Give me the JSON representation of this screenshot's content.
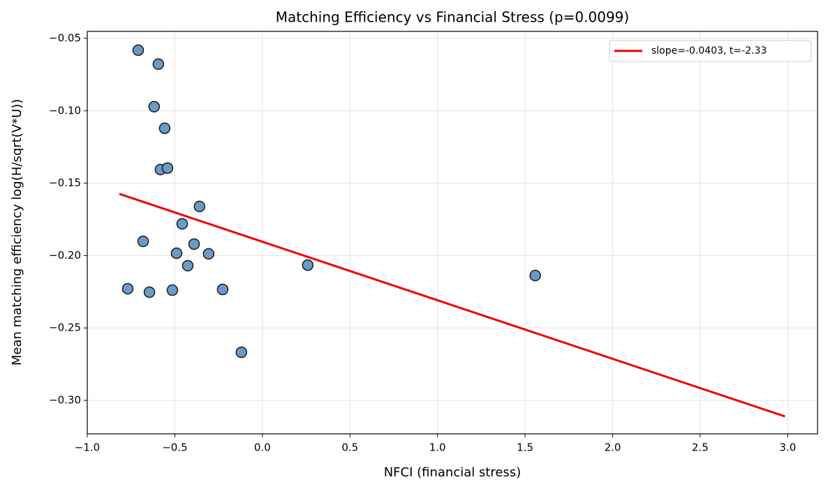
{
  "chart_data": {
    "type": "scatter",
    "title": "Matching Efficiency vs Financial Stress (p=0.0099)",
    "xlabel": "NFCI (financial stress)",
    "ylabel": "Mean matching efficiency log(H/sqrt(V*U))",
    "xlim": [
      -1.0,
      3.17
    ],
    "ylim": [
      -0.3231,
      -0.0452
    ],
    "xticks": [
      {
        "value": -1.0,
        "label": "−1.0"
      },
      {
        "value": -0.5,
        "label": "−0.5"
      },
      {
        "value": 0,
        "label": "0.0"
      },
      0.5,
      {
        "value": 1.0,
        "label": "1.0"
      },
      1.5,
      {
        "value": 2.0,
        "label": "2.0"
      },
      2.5,
      {
        "value": 3.0,
        "label": "3.0"
      }
    ],
    "yticks": [
      {
        "value": -0.05,
        "label": "−0.05"
      },
      {
        "value": -0.1,
        "label": "−0.10"
      },
      {
        "value": -0.15,
        "label": "−0.15"
      },
      {
        "value": -0.2,
        "label": "−0.20"
      },
      {
        "value": -0.25,
        "label": "−0.25"
      },
      {
        "value": -0.3,
        "label": "−0.30"
      }
    ],
    "grid": true,
    "legend": "upper right",
    "series": [
      {
        "type": "scatter",
        "color": "#6a9ac8",
        "x": [
          -0.709,
          -0.594,
          -0.618,
          -0.558,
          -0.582,
          -0.542,
          -0.359,
          -0.458,
          -0.681,
          -0.39,
          -0.49,
          -0.307,
          -0.426,
          0.259,
          1.558,
          -0.769,
          -0.645,
          -0.514,
          -0.227,
          -0.12
        ],
        "values": [
          -0.0582,
          -0.0678,
          -0.0972,
          -0.1121,
          -0.1406,
          -0.1396,
          -0.1661,
          -0.1781,
          -0.1902,
          -0.1921,
          -0.1984,
          -0.1988,
          -0.207,
          -0.2066,
          -0.2138,
          -0.2229,
          -0.2253,
          -0.2239,
          -0.2234,
          -0.2668
        ]
      },
      {
        "type": "line",
        "name": "slope=-0.0403, t=-2.33",
        "color": "#ee0000",
        "x": [
          -0.817,
          2.984
        ],
        "values": [
          -0.1574,
          -0.3111
        ]
      }
    ]
  }
}
